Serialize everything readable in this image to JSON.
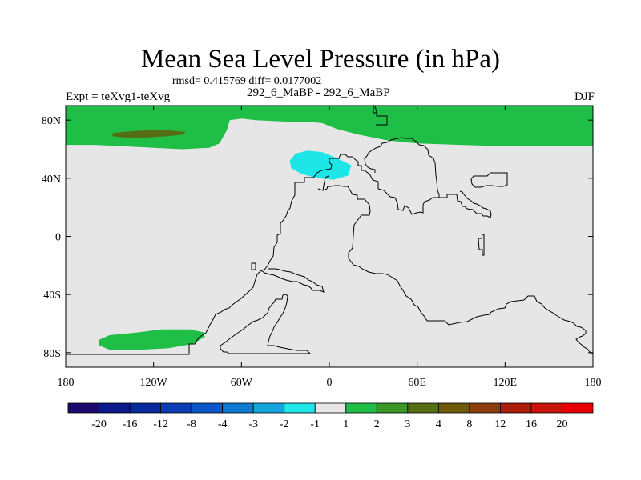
{
  "title": "Mean Sea Level Pressure (in hPa)",
  "stats": "rmsd= 0.415769 diff= 0.0177002",
  "experiment": "Expt = teXvg1-teXvg",
  "subtitle": "292_6_MaBP - 292_6_MaBP",
  "season": "DJF",
  "colors": {
    "background_field": "#e6e6e6",
    "coastline": "#000000"
  },
  "chart_data": {
    "type": "heatmap",
    "title": "Mean Sea Level Pressure (in hPa)",
    "x_ticks": [
      {
        "value": -180,
        "label": "180"
      },
      {
        "value": -120,
        "label": "120W"
      },
      {
        "value": -60,
        "label": "60W"
      },
      {
        "value": 0,
        "label": "0"
      },
      {
        "value": 60,
        "label": "60E"
      },
      {
        "value": 120,
        "label": "120E"
      },
      {
        "value": 180,
        "label": "180"
      }
    ],
    "y_ticks": [
      {
        "value": 80,
        "label": "80N"
      },
      {
        "value": 40,
        "label": "40N"
      },
      {
        "value": 0,
        "label": "0"
      },
      {
        "value": -40,
        "label": "40S"
      },
      {
        "value": -80,
        "label": "80S"
      }
    ],
    "xlim": [
      -180,
      180
    ],
    "ylim": [
      -90,
      90
    ],
    "colorbar": {
      "labels": [
        "-20",
        "-16",
        "-12",
        "-8",
        "-4",
        "-3",
        "-2",
        "-1",
        "1",
        "2",
        "3",
        "4",
        "8",
        "12",
        "16",
        "20"
      ],
      "colors": [
        "#1e0a6e",
        "#0d1a8c",
        "#0a2aa0",
        "#0a3cb4",
        "#0a55c8",
        "#0f7ad2",
        "#14a5dc",
        "#1ee6e6",
        "#e6e6e6",
        "#1fbe46",
        "#3c9628",
        "#556e14",
        "#6e5a0a",
        "#8c3c0a",
        "#aa1e0a",
        "#c8140a",
        "#e60000"
      ]
    },
    "regions": [
      {
        "name": "north-polar-positive",
        "level": "1 to 2",
        "color": "#1fbe46",
        "points": [
          [
            -180,
            90
          ],
          [
            180,
            90
          ],
          [
            180,
            62
          ],
          [
            162,
            62
          ],
          [
            140,
            62
          ],
          [
            120,
            62
          ],
          [
            90,
            63
          ],
          [
            60,
            64
          ],
          [
            40,
            66
          ],
          [
            20,
            70
          ],
          [
            5,
            74
          ],
          [
            -5,
            78
          ],
          [
            -18,
            79
          ],
          [
            -30,
            79
          ],
          [
            -50,
            80
          ],
          [
            -60,
            81
          ],
          [
            -68,
            80
          ],
          [
            -70,
            73
          ],
          [
            -75,
            64
          ],
          [
            -82,
            61
          ],
          [
            -100,
            60
          ],
          [
            -120,
            61
          ],
          [
            -140,
            62
          ],
          [
            -160,
            63
          ],
          [
            -180,
            63
          ]
        ]
      },
      {
        "name": "north-pacific-high",
        "level": "2 to 3",
        "color": "#556e14",
        "points": [
          [
            -148,
            71
          ],
          [
            -140,
            72
          ],
          [
            -125,
            73
          ],
          [
            -110,
            73
          ],
          [
            -98,
            72
          ],
          [
            -100,
            70
          ],
          [
            -110,
            69
          ],
          [
            -125,
            68
          ],
          [
            -140,
            68
          ],
          [
            -148,
            69
          ]
        ]
      },
      {
        "name": "north-atlantic-low",
        "level": "-2 to -1",
        "color": "#1ee6e6",
        "points": [
          [
            -27,
            52
          ],
          [
            -23,
            57
          ],
          [
            -15,
            59
          ],
          [
            -5,
            58
          ],
          [
            5,
            54
          ],
          [
            15,
            49
          ],
          [
            13,
            42
          ],
          [
            3,
            39
          ],
          [
            -8,
            40
          ],
          [
            -19,
            43
          ],
          [
            -26,
            47
          ]
        ]
      },
      {
        "name": "south-pacific-positive",
        "level": "1 to 2",
        "color": "#1fbe46",
        "points": [
          [
            -157,
            -71
          ],
          [
            -150,
            -68
          ],
          [
            -130,
            -66
          ],
          [
            -115,
            -64
          ],
          [
            -95,
            -64
          ],
          [
            -86,
            -66
          ],
          [
            -85,
            -69
          ],
          [
            -93,
            -74
          ],
          [
            -110,
            -77
          ],
          [
            -130,
            -78
          ],
          [
            -150,
            -78
          ],
          [
            -157,
            -75
          ]
        ]
      }
    ]
  }
}
